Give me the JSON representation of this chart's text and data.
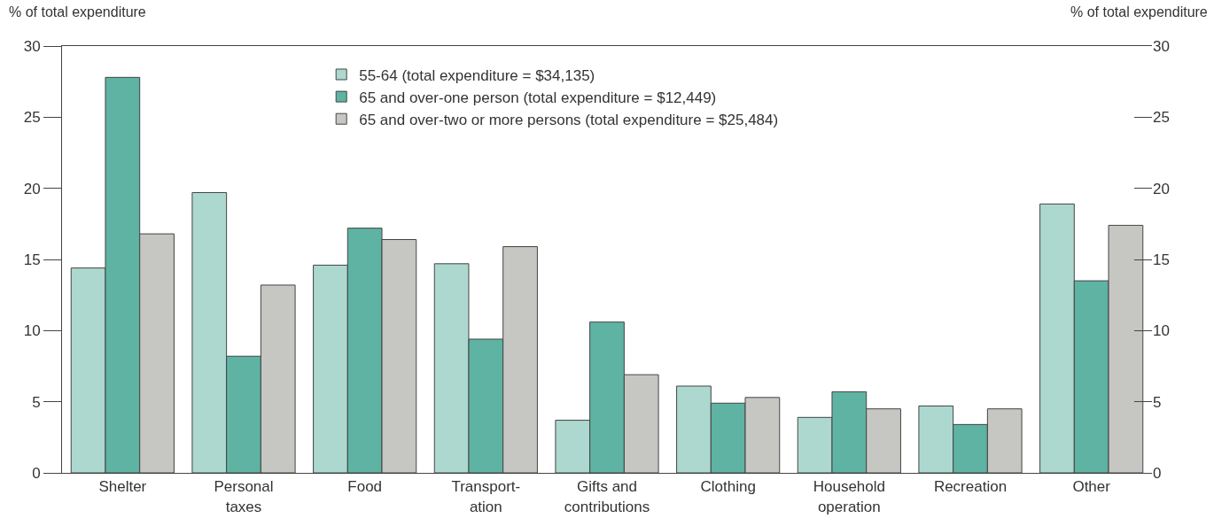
{
  "chart_data": {
    "type": "bar",
    "ylabel": "% of total expenditure",
    "y2label": "% of total expenditure",
    "categories": [
      "Shelter",
      "Personal\ntaxes",
      "Food",
      "Transport-\nation",
      "Gifts and\ncontributions",
      "Clothing",
      "Household\noperation",
      "Recreation",
      "Other"
    ],
    "series": [
      {
        "name": "55-64 (total expenditure = $34,135)",
        "color": "#acd8cf",
        "values": [
          14.4,
          19.7,
          14.6,
          14.7,
          3.7,
          6.1,
          3.9,
          4.7,
          18.9
        ]
      },
      {
        "name": "65 and over-one person (total expenditure = $12,449)",
        "color": "#5fb3a3",
        "values": [
          27.8,
          8.2,
          17.2,
          9.4,
          10.6,
          4.9,
          5.7,
          3.4,
          13.5
        ]
      },
      {
        "name": "65 and over-two or more persons (total expenditure = $25,484)",
        "color": "#c6c7c2",
        "values": [
          16.8,
          13.2,
          16.4,
          15.9,
          6.9,
          5.3,
          4.5,
          4.5,
          17.4
        ]
      }
    ],
    "ylim": [
      0,
      30
    ],
    "yticks": [
      0,
      5,
      10,
      15,
      20,
      25,
      30
    ],
    "y2lim": [
      0,
      30
    ],
    "y2ticks": [
      0,
      5,
      10,
      15,
      20,
      25,
      30
    ],
    "legend": "top"
  }
}
